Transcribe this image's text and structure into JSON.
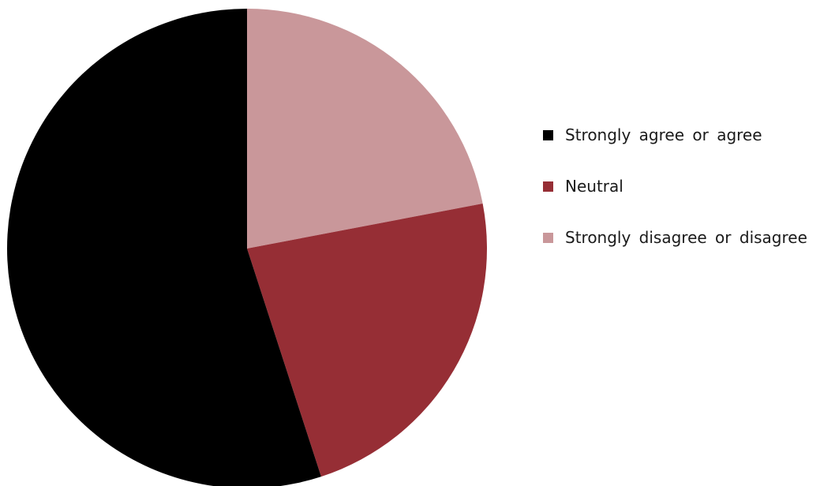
{
  "chart_data": {
    "type": "pie",
    "title": "",
    "slices": [
      {
        "label": "Strongly agree or agree",
        "value": 55,
        "color": "#000000"
      },
      {
        "label": "Neutral",
        "value": 23,
        "color": "#962e35"
      },
      {
        "label": "Strongly disagree or disagree",
        "value": 22,
        "color": "#c9979a"
      }
    ],
    "start": "top",
    "direction": "clockwise",
    "order_clockwise_from_top": [
      2,
      1,
      0
    ],
    "legend_position": "right"
  }
}
